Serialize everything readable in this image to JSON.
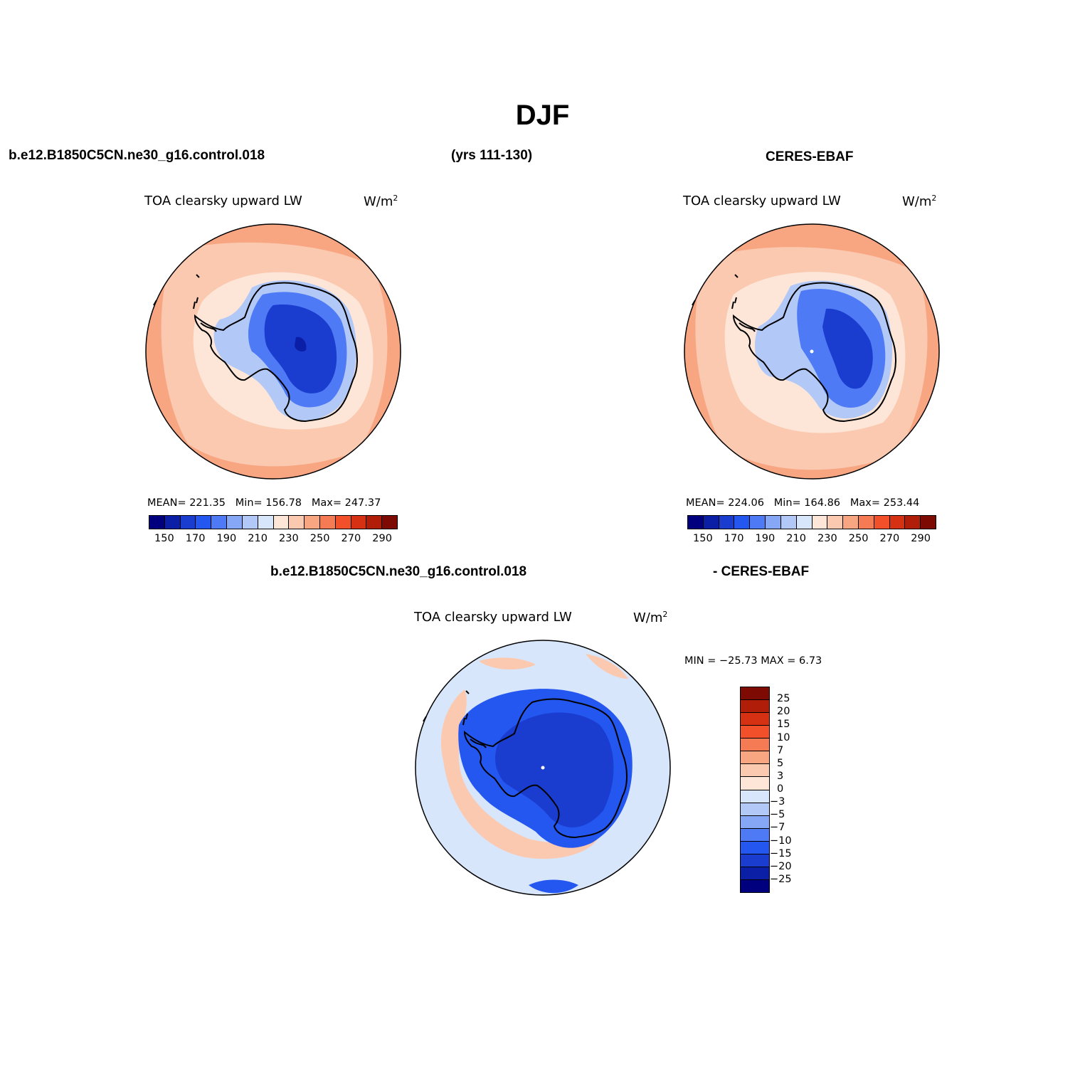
{
  "figure": {
    "title": "DJF",
    "case_name": "b.e12.B1850C5CN.ne30_g16.control.018",
    "years": "(yrs 111-130)",
    "obs_name": "CERES-EBAF",
    "diff_case": "b.e12.B1850C5CN.ne30_g16.control.018",
    "diff_obs": "- CERES-EBAF"
  },
  "panels": [
    {
      "id": "model",
      "variable": "TOA clearsky upward LW",
      "units_base": "W/m",
      "units_sup": "2",
      "stats": {
        "mean_label": "MEAN=",
        "mean": "221.35",
        "min_label": "Min=",
        "min": "156.78",
        "max_label": "Max=",
        "max": "247.37"
      }
    },
    {
      "id": "obs",
      "variable": "TOA clearsky upward LW",
      "units_base": "W/m",
      "units_sup": "2",
      "stats": {
        "mean_label": "MEAN=",
        "mean": "224.06",
        "min_label": "Min=",
        "min": "164.86",
        "max_label": "Max=",
        "max": "253.44"
      }
    },
    {
      "id": "diff",
      "variable": "TOA clearsky upward LW",
      "units_base": "W/m",
      "units_sup": "2",
      "minmax": "MIN = −25.73 MAX =    6.73"
    }
  ],
  "colorbar_abs": {
    "colors": [
      "#00007f",
      "#0a1ea6",
      "#1a3ccf",
      "#2456f0",
      "#4f7af5",
      "#86a6f6",
      "#b2c9f8",
      "#d8e6fb",
      "#fde6d8",
      "#fbc9b0",
      "#f8a582",
      "#f57b55",
      "#f2502a",
      "#d63112",
      "#b01d08",
      "#7d0a03"
    ],
    "ticks": [
      "150",
      "170",
      "190",
      "210",
      "230",
      "250",
      "270",
      "290"
    ]
  },
  "colorbar_diff": {
    "colors": [
      "#7d0a03",
      "#b01d08",
      "#d63112",
      "#f2502a",
      "#f57b55",
      "#f8a582",
      "#fbc9b0",
      "#fde6d8",
      "#d8e6fb",
      "#b2c9f8",
      "#86a6f6",
      "#4f7af5",
      "#2456f0",
      "#1a3ccf",
      "#0a1ea6",
      "#00007f"
    ],
    "labels": [
      "25",
      "20",
      "15",
      "10",
      "7",
      "5",
      "3",
      "0",
      "−3",
      "−5",
      "−7",
      "−10",
      "−15",
      "−20",
      "−25"
    ]
  },
  "map_colors": {
    "outer_model": "#f8a582",
    "ring_model": "#fbc9b0",
    "coast_ring": "#fde6d8",
    "ice_edge": "#b2c9f8",
    "ice_mid": "#4f7af5",
    "ice_core": "#1a3ccf",
    "ice_min": "#0a1ea6",
    "diff_ocean": "#d8e6fb",
    "diff_warm": "#fbc9b0",
    "diff_cold": "#2456f0",
    "diff_deep": "#1a3ccf"
  }
}
